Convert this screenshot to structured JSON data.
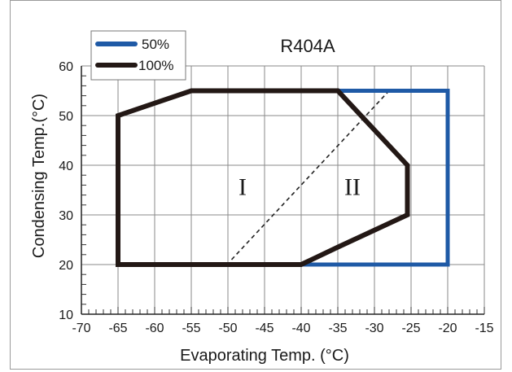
{
  "chart_data": {
    "type": "line",
    "title": "R404A",
    "xlabel": "Evaporating Temp. (°C)",
    "ylabel": "Condensing Temp.(°C)",
    "xlim": [
      -70,
      -15
    ],
    "ylim": [
      10,
      60
    ],
    "xticks": [
      "-70",
      "-65",
      "-60",
      "-55",
      "-50",
      "-45",
      "-40",
      "-35",
      "-30",
      "-25",
      "-20",
      "-15"
    ],
    "yticks": [
      "10",
      "20",
      "30",
      "40",
      "50",
      "60"
    ],
    "grid": true,
    "legend_position": "top-left",
    "series": [
      {
        "name": "50%",
        "color": "#1f5aa6",
        "points": [
          [
            -35,
            55
          ],
          [
            -20,
            55
          ],
          [
            -20,
            20
          ],
          [
            -40,
            20
          ]
        ]
      },
      {
        "name": "100%",
        "color": "#231815",
        "closed": true,
        "points": [
          [
            -65,
            20
          ],
          [
            -65,
            50
          ],
          [
            -55,
            55
          ],
          [
            -35,
            55
          ],
          [
            -25.5,
            40
          ],
          [
            -25.5,
            30
          ],
          [
            -35,
            23.5
          ],
          [
            -40,
            20
          ]
        ]
      }
    ],
    "divider": {
      "style": "dashed",
      "points": [
        [
          -49.5,
          21
        ],
        [
          -28,
          55
        ]
      ]
    },
    "annotations": [
      {
        "text": "I",
        "x": -48,
        "y": 34
      },
      {
        "text": "II",
        "x": -33,
        "y": 34
      }
    ]
  }
}
